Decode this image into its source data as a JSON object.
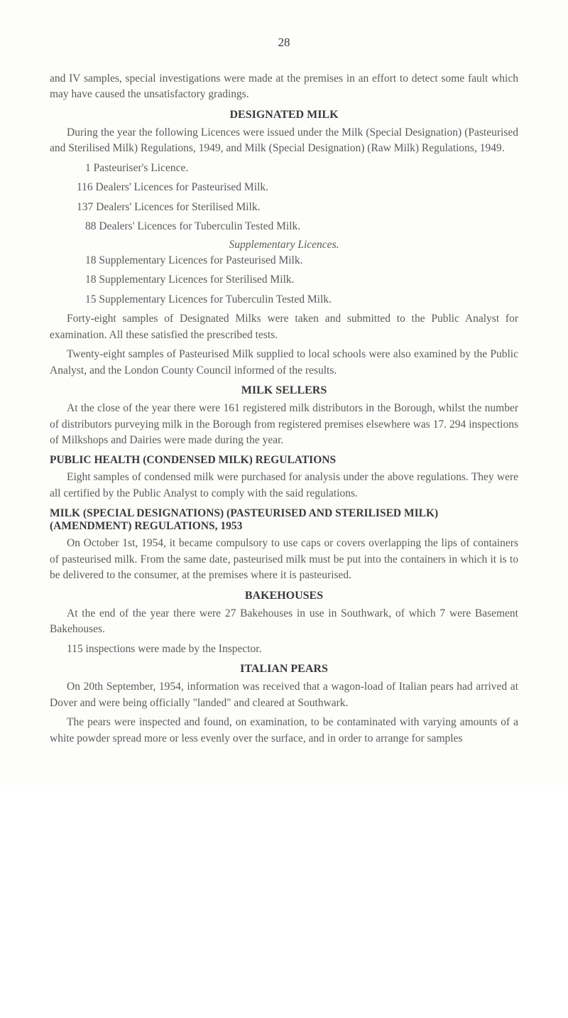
{
  "pageNumber": "28",
  "para1": "and IV samples, special investigations were made at the premises in an effort to detect some fault which may have caused the unsatisfactory gradings.",
  "heading1": "DESIGNATED MILK",
  "para2": "During the year the following Licences were issued under the Milk (Special Designation) (Pasteurised and Sterilised Milk) Regulations, 1949, and Milk (Special Designation) (Raw Milk) Regulations, 1949.",
  "list1": [
    "1 Pasteuriser's Licence.",
    "116 Dealers' Licences for Pasteurised Milk.",
    "137 Dealers' Licences for Sterilised Milk.",
    "88 Dealers' Licences for Tuberculin Tested Milk."
  ],
  "suppHeading": "Supplementary Licences.",
  "list2": [
    "18 Supplementary Licences for Pasteurised Milk.",
    "18 Supplementary Licences for Sterilised Milk.",
    "15 Supplementary Licences for Tuberculin Tested Milk."
  ],
  "para3": "Forty-eight samples of Designated Milks were taken and submitted to the Public Analyst for examination. All these satisfied the prescribed tests.",
  "para4": "Twenty-eight samples of Pasteurised Milk supplied to local schools were also examined by the Public Analyst, and the London County Council informed of the results.",
  "heading2": "MILK SELLERS",
  "para5": "At the close of the year there were 161 registered milk distributors in the Borough, whilst the number of distributors purveying milk in the Borough from registered premises elsewhere was 17. 294 inspections of Milkshops and Dairies were made during the year.",
  "subheading1": "PUBLIC HEALTH (CONDENSED MILK) REGULATIONS",
  "para6": "Eight samples of condensed milk were purchased for analysis under the above regulations. They were all certified by the Public Analyst to comply with the said regulations.",
  "subheading2": "MILK (SPECIAL DESIGNATIONS) (PASTEURISED AND STERILISED MILK) (AMENDMENT) REGULATIONS, 1953",
  "para7": "On October 1st, 1954, it became compulsory to use caps or covers overlapping the lips of containers of pasteurised milk. From the same date, pasteurised milk must be put into the containers in which it is to be delivered to the consumer, at the premises where it is pasteurised.",
  "heading3": "BAKEHOUSES",
  "para8": "At the end of the year there were 27 Bakehouses in use in Southwark, of which 7 were Basement Bakehouses.",
  "para9": "115 inspections were made by the Inspector.",
  "heading4": "ITALIAN PEARS",
  "para10": "On 20th September, 1954, information was received that a wagon-load of Italian pears had arrived at Dover and were being officially \"landed\" and cleared at Southwark.",
  "para11": "The pears were inspected and found, on examination, to be contaminated with varying amounts of a white powder spread more or less evenly over the surface, and in order to arrange for samples"
}
